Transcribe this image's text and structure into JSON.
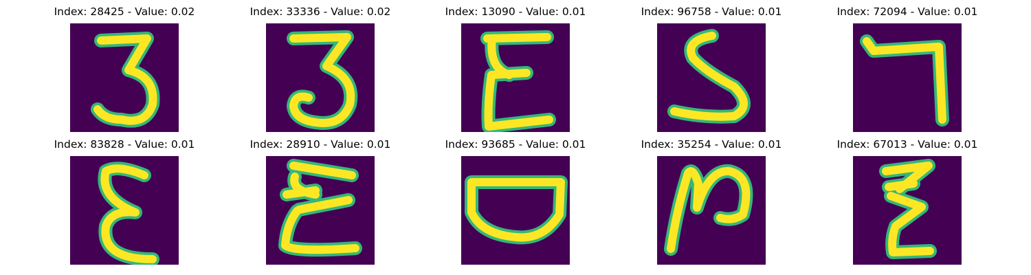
{
  "panels": [
    {
      "title": "Index: 28425 - Value: 0.02",
      "glyph": "digit-3"
    },
    {
      "title": "Index: 33336 - Value: 0.02",
      "glyph": "digit-3-curled"
    },
    {
      "title": "Index: 13090 - Value: 0.01",
      "glyph": "epsilon-flat"
    },
    {
      "title": "Index: 96758 - Value: 0.01",
      "glyph": "digit-5"
    },
    {
      "title": "Index: 72094 - Value: 0.01",
      "glyph": "hook"
    },
    {
      "title": "Index: 83828 - Value: 0.01",
      "glyph": "epsilon"
    },
    {
      "title": "Index: 28910 - Value: 0.01",
      "glyph": "epsilon-wavy"
    },
    {
      "title": "Index: 93685 - Value: 0.01",
      "glyph": "bowl"
    },
    {
      "title": "Index: 35254 - Value: 0.01",
      "glyph": "n-shape"
    },
    {
      "title": "Index: 67013 - Value: 0.01",
      "glyph": "zigzag"
    }
  ],
  "colors": {
    "background": "#440154",
    "stroke_outer": "#35b779",
    "stroke_inner": "#fde725"
  }
}
